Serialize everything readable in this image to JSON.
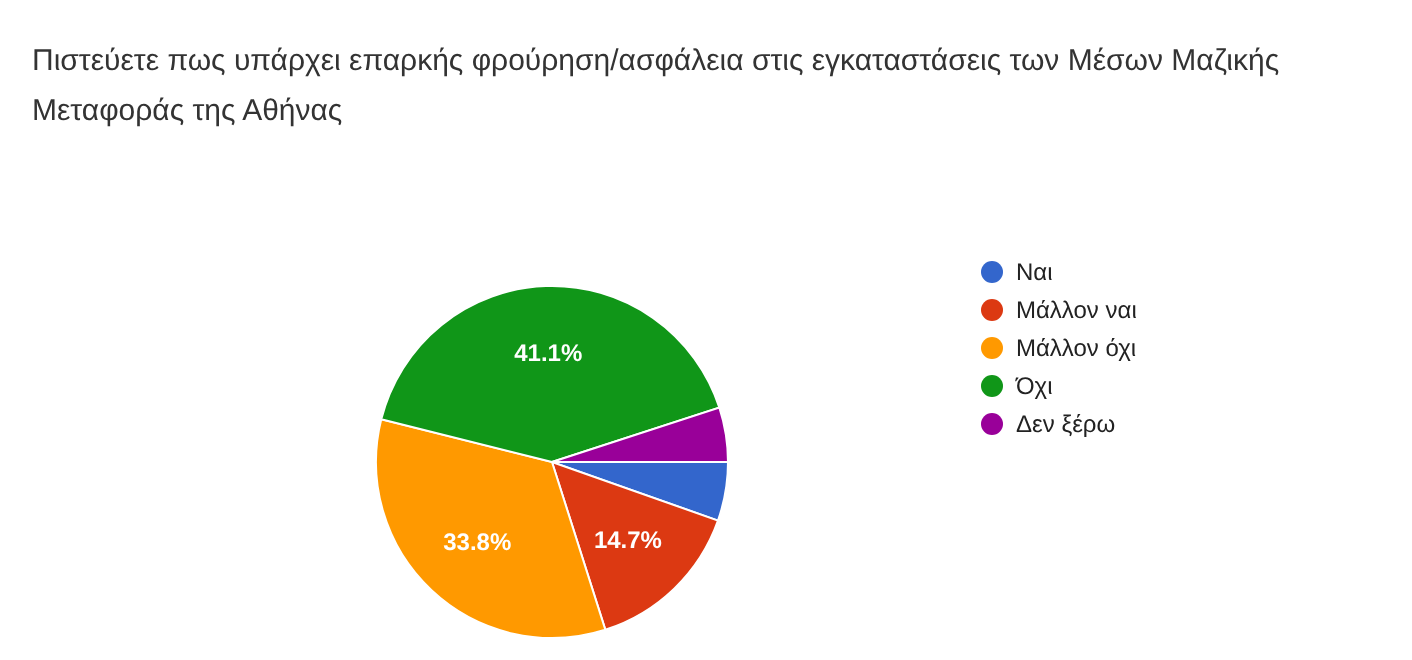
{
  "chart_data": {
    "type": "pie",
    "title": "Πιστεύετε πως υπάρχει επαρκής φρούρηση/ασφάλεια στις εγκαταστάσεις των Μέσων Μαζικής Μεταφοράς της Αθήνας",
    "categories": [
      "Ναι",
      "Μάλλον ναι",
      "Μάλλον όχι",
      "Όχι",
      "Δεν ξέρω"
    ],
    "values": [
      5.4,
      14.7,
      33.8,
      41.1,
      5.0
    ],
    "colors": [
      "#3366cc",
      "#dc3912",
      "#ff9900",
      "#109618",
      "#990099"
    ],
    "value_labels": [
      null,
      "14.7%",
      "33.8%",
      "41.1%",
      null
    ],
    "legend": "right"
  }
}
